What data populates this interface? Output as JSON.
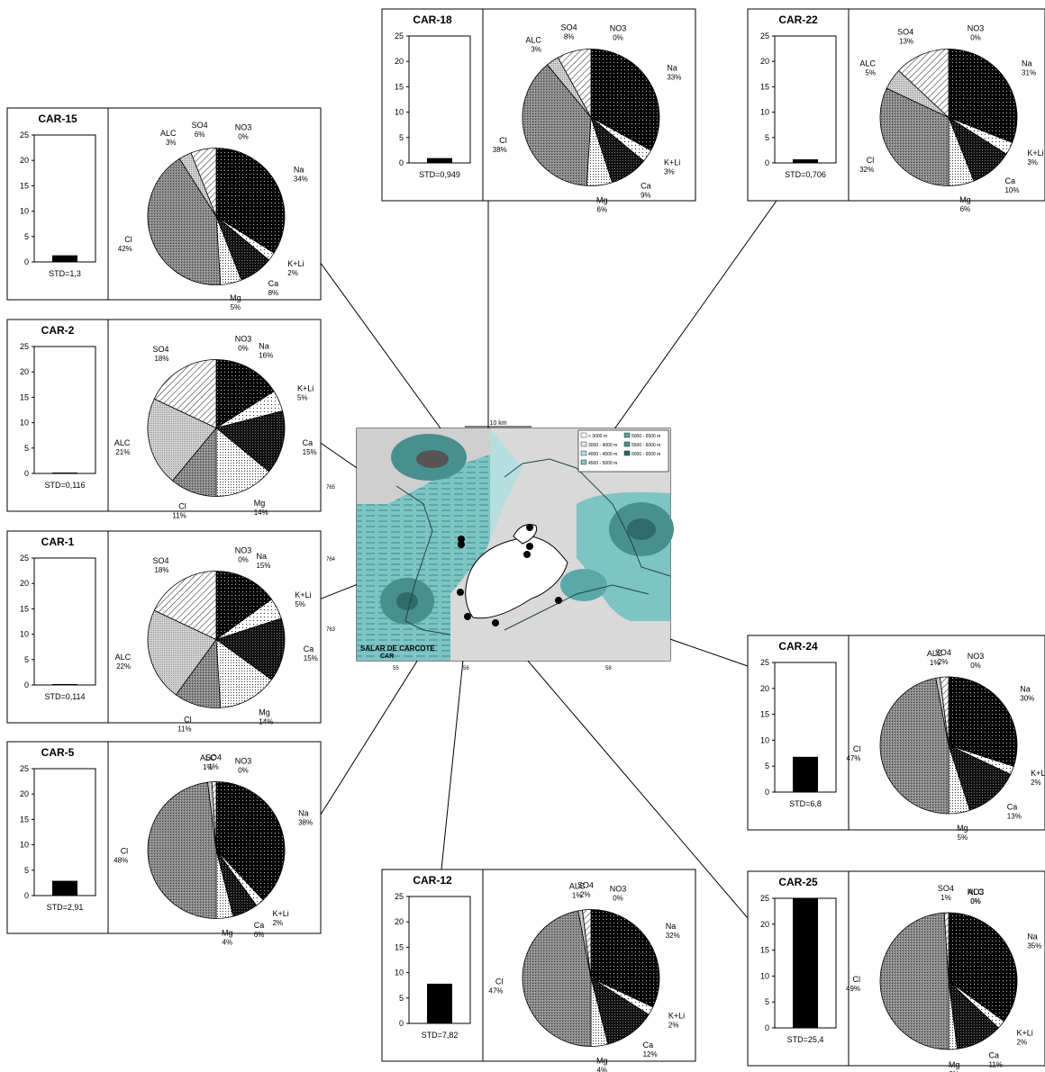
{
  "map": {
    "title_line1": "SALAR DE CARCOTE",
    "title_line2": "CAR",
    "scale_label": "10 km",
    "x_ticks": [
      "55",
      "56",
      "58"
    ],
    "y_ticks": [
      "765",
      "764",
      "763"
    ],
    "legend": [
      "< 3000 m",
      "3000 - 4000 m",
      "4000 - 4500 m",
      "4500 - 5000 m",
      "5000 - 5500 m",
      "5500 - 6000 m",
      "6000 - 6500 m"
    ]
  },
  "chart_data": [
    {
      "type": "bar+pie",
      "title": "CAR-15",
      "std_label": "STD=1,3",
      "std": 1.3,
      "ylim": [
        0,
        25
      ],
      "yticks": [
        "0",
        "5",
        "10",
        "15",
        "20",
        "25"
      ],
      "slices": [
        {
          "name": "NO3",
          "percent": 0,
          "label": "0%"
        },
        {
          "name": "Na",
          "percent": 34,
          "label": "34%"
        },
        {
          "name": "K+Li",
          "percent": 2,
          "label": "2%"
        },
        {
          "name": "Ca",
          "percent": 8,
          "label": "8%"
        },
        {
          "name": "Mg",
          "percent": 5,
          "label": "5%"
        },
        {
          "name": "Cl",
          "percent": 42,
          "label": "42%"
        },
        {
          "name": "ALC",
          "percent": 3,
          "label": "3%"
        },
        {
          "name": "SO4",
          "percent": 6,
          "label": "6%"
        }
      ]
    },
    {
      "type": "bar+pie",
      "title": "CAR-2",
      "std_label": "STD=0,116",
      "std": 0.116,
      "ylim": [
        0,
        25
      ],
      "yticks": [
        "0",
        "5",
        "10",
        "15",
        "20",
        "25"
      ],
      "slices": [
        {
          "name": "NO3",
          "percent": 0,
          "label": "0%"
        },
        {
          "name": "Na",
          "percent": 16,
          "label": "16%"
        },
        {
          "name": "K+Li",
          "percent": 5,
          "label": "5%"
        },
        {
          "name": "Ca",
          "percent": 15,
          "label": "15%"
        },
        {
          "name": "Mg",
          "percent": 14,
          "label": "14%"
        },
        {
          "name": "Cl",
          "percent": 11,
          "label": "11%"
        },
        {
          "name": "ALC",
          "percent": 21,
          "label": "21%"
        },
        {
          "name": "SO4",
          "percent": 18,
          "label": "18%"
        }
      ]
    },
    {
      "type": "bar+pie",
      "title": "CAR-1",
      "std_label": "STD=0,114",
      "std": 0.114,
      "ylim": [
        0,
        25
      ],
      "yticks": [
        "0",
        "5",
        "10",
        "15",
        "20",
        "25"
      ],
      "slices": [
        {
          "name": "NO3",
          "percent": 0,
          "label": "0%"
        },
        {
          "name": "Na",
          "percent": 15,
          "label": "15%"
        },
        {
          "name": "K+Li",
          "percent": 5,
          "label": "5%"
        },
        {
          "name": "Ca",
          "percent": 15,
          "label": "15%"
        },
        {
          "name": "Mg",
          "percent": 14,
          "label": "14%"
        },
        {
          "name": "Cl",
          "percent": 11,
          "label": "11%"
        },
        {
          "name": "ALC",
          "percent": 22,
          "label": "22%"
        },
        {
          "name": "SO4",
          "percent": 18,
          "label": "18%"
        }
      ]
    },
    {
      "type": "bar+pie",
      "title": "CAR-5",
      "std_label": "STD=2,91",
      "std": 2.91,
      "ylim": [
        0,
        25
      ],
      "yticks": [
        "0",
        "5",
        "10",
        "15",
        "20",
        "25"
      ],
      "slices": [
        {
          "name": "NO3",
          "percent": 0,
          "label": "0%"
        },
        {
          "name": "Na",
          "percent": 38,
          "label": "38%"
        },
        {
          "name": "K+Li",
          "percent": 2,
          "label": "2%"
        },
        {
          "name": "Ca",
          "percent": 6,
          "label": "6%"
        },
        {
          "name": "Mg",
          "percent": 4,
          "label": "4%"
        },
        {
          "name": "Cl",
          "percent": 48,
          "label": "48%"
        },
        {
          "name": "ALC",
          "percent": 1,
          "label": "1%"
        },
        {
          "name": "SO4",
          "percent": 1,
          "label": "1%"
        }
      ]
    },
    {
      "type": "bar+pie",
      "title": "CAR-18",
      "std_label": "STD=0,949",
      "std": 0.949,
      "ylim": [
        0,
        25
      ],
      "yticks": [
        "0",
        "5",
        "10",
        "15",
        "20",
        "25"
      ],
      "slices": [
        {
          "name": "NO3",
          "percent": 0,
          "label": "0%"
        },
        {
          "name": "Na",
          "percent": 33,
          "label": "33%"
        },
        {
          "name": "K+Li",
          "percent": 3,
          "label": "3%"
        },
        {
          "name": "Ca",
          "percent": 9,
          "label": "9%"
        },
        {
          "name": "Mg",
          "percent": 6,
          "label": "6%"
        },
        {
          "name": "Cl",
          "percent": 38,
          "label": "38%"
        },
        {
          "name": "ALC",
          "percent": 3,
          "label": "3%"
        },
        {
          "name": "SO4",
          "percent": 8,
          "label": "8%"
        }
      ]
    },
    {
      "type": "bar+pie",
      "title": "CAR-22",
      "std_label": "STD=0,706",
      "std": 0.706,
      "ylim": [
        0,
        25
      ],
      "yticks": [
        "0",
        "5",
        "10",
        "15",
        "20",
        "25"
      ],
      "slices": [
        {
          "name": "NO3",
          "percent": 0,
          "label": "0%"
        },
        {
          "name": "Na",
          "percent": 31,
          "label": "31%"
        },
        {
          "name": "K+Li",
          "percent": 3,
          "label": "3%"
        },
        {
          "name": "Ca",
          "percent": 10,
          "label": "10%"
        },
        {
          "name": "Mg",
          "percent": 6,
          "label": "6%"
        },
        {
          "name": "Cl",
          "percent": 32,
          "label": "32%"
        },
        {
          "name": "ALC",
          "percent": 5,
          "label": "5%"
        },
        {
          "name": "SO4",
          "percent": 13,
          "label": "13%"
        }
      ]
    },
    {
      "type": "bar+pie",
      "title": "CAR-24",
      "std_label": "STD=6,8",
      "std": 6.8,
      "ylim": [
        0,
        25
      ],
      "yticks": [
        "0",
        "5",
        "10",
        "15",
        "20",
        "25"
      ],
      "slices": [
        {
          "name": "NO3",
          "percent": 0,
          "label": "0%"
        },
        {
          "name": "Na",
          "percent": 30,
          "label": "30%"
        },
        {
          "name": "K+Li",
          "percent": 2,
          "label": "2%"
        },
        {
          "name": "Ca",
          "percent": 13,
          "label": "13%"
        },
        {
          "name": "Mg",
          "percent": 5,
          "label": "5%"
        },
        {
          "name": "Cl",
          "percent": 47,
          "label": "47%"
        },
        {
          "name": "ALC",
          "percent": 1,
          "label": "1%"
        },
        {
          "name": "SO4",
          "percent": 2,
          "label": "2%"
        }
      ]
    },
    {
      "type": "bar+pie",
      "title": "CAR-12",
      "std_label": "STD=7,82",
      "std": 7.82,
      "ylim": [
        0,
        25
      ],
      "yticks": [
        "0",
        "5",
        "10",
        "15",
        "20",
        "25"
      ],
      "slices": [
        {
          "name": "NO3",
          "percent": 0,
          "label": "0%"
        },
        {
          "name": "Na",
          "percent": 32,
          "label": "32%"
        },
        {
          "name": "K+Li",
          "percent": 2,
          "label": "2%"
        },
        {
          "name": "Ca",
          "percent": 12,
          "label": "12%"
        },
        {
          "name": "Mg",
          "percent": 4,
          "label": "4%"
        },
        {
          "name": "Cl",
          "percent": 47,
          "label": "47%"
        },
        {
          "name": "ALC",
          "percent": 1,
          "label": "1%"
        },
        {
          "name": "SO4",
          "percent": 2,
          "label": "2%"
        }
      ]
    },
    {
      "type": "bar+pie",
      "title": "CAR-25",
      "std_label": "STD=25,4",
      "std": 25.4,
      "ylim": [
        0,
        25
      ],
      "yticks": [
        "0",
        "5",
        "10",
        "15",
        "20",
        "25"
      ],
      "slices": [
        {
          "name": "NO3",
          "percent": 0,
          "label": "0%"
        },
        {
          "name": "Na",
          "percent": 35,
          "label": "35%"
        },
        {
          "name": "K+Li",
          "percent": 2,
          "label": "2%"
        },
        {
          "name": "Ca",
          "percent": 11,
          "label": "11%"
        },
        {
          "name": "Mg",
          "percent": 2,
          "label": "2%"
        },
        {
          "name": "Cl",
          "percent": 49,
          "label": "49%"
        },
        {
          "name": "ALC",
          "percent": 0,
          "label": "0%"
        },
        {
          "name": "SO4",
          "percent": 1,
          "label": "1%"
        }
      ]
    }
  ],
  "colors": {
    "Na": "#111111",
    "K+Li": "#ffffff",
    "Ca": "#1a1a1a",
    "Mg": "#f0f0f0",
    "Cl": "#7a7a7a",
    "ALC": "#c8c8c8",
    "SO4": "#eeeeee",
    "NO3": "#ffffff",
    "map_water": "#b7dede",
    "map_teal": "#7fc4c4",
    "map_dark": "#4a8f8f",
    "map_light": "#d6d6d6"
  }
}
